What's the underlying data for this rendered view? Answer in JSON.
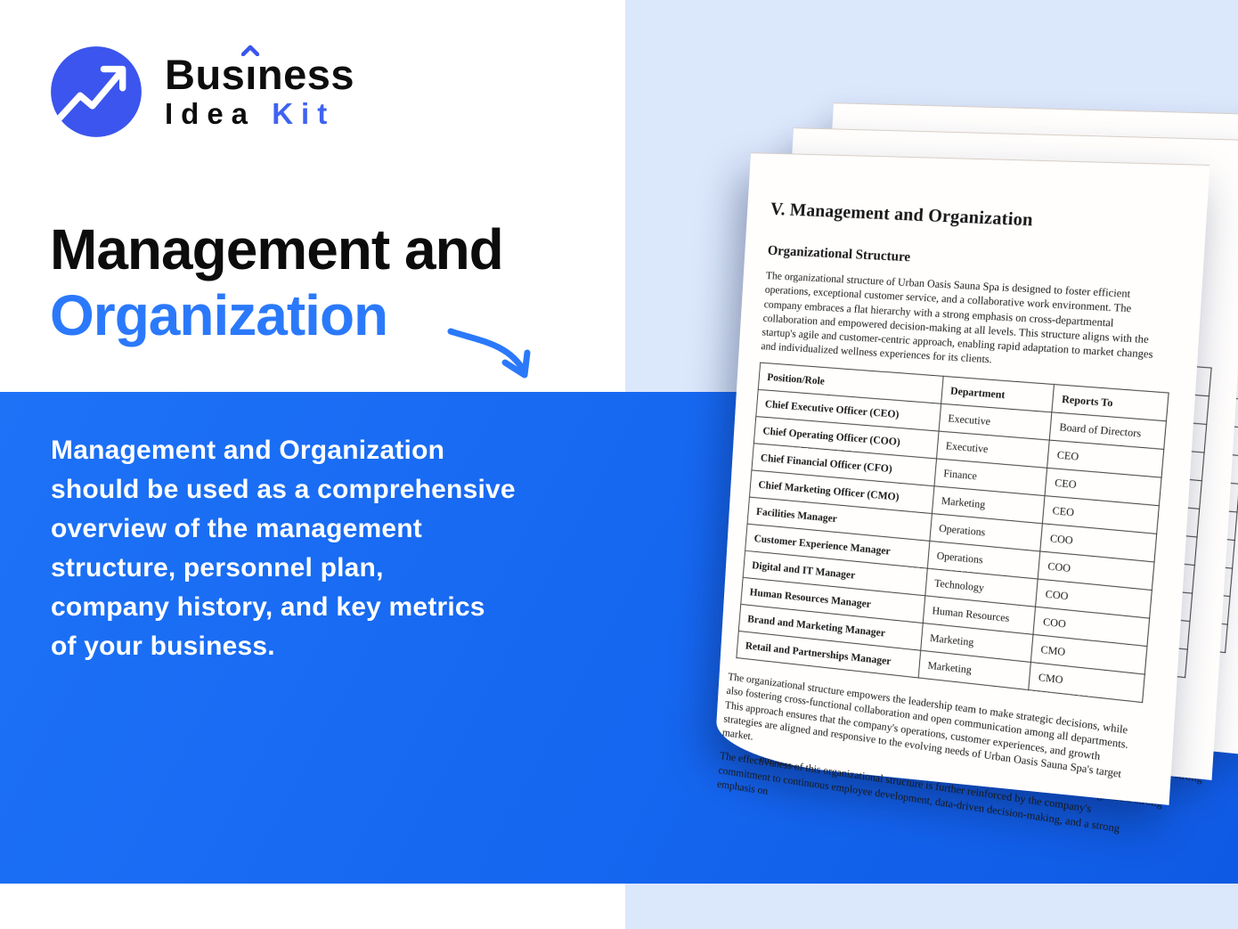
{
  "brand": {
    "name_pre": "Bus",
    "name_i": "ı",
    "name_post": "ness",
    "name_black": "Idea",
    "name_blue": "Kit"
  },
  "hero": {
    "title_black": "Management and",
    "title_blue": "Organization",
    "description_lines": [
      "Management and Organization",
      "should be used as a comprehensive",
      "overview of the management",
      "structure, personnel plan,",
      "company history, and key metrics",
      "of your business."
    ]
  },
  "colors": {
    "accent_blue": "#2b79fb",
    "band_blue": "#1566f0",
    "panel_light_blue": "#dbe7fb",
    "logo_circle_blue": "#3b55ee",
    "kit_blue": "#3e63f1"
  },
  "icons": {
    "logo_icon": "trend-up-arrow",
    "heading_arrow": "curved-down-right-arrow",
    "caret": "circumflex-caret"
  },
  "document": {
    "title": "V. Management and Organization",
    "section_heading": "Organizational Structure",
    "paragraph1": "The organizational structure of Urban Oasis Sauna Spa is designed to foster efficient operations, exceptional customer service, and a collaborative work environment. The company embraces a flat hierarchy with a strong emphasis on cross-departmental collaboration and empowered decision-making at all levels. This structure aligns with the startup's agile and customer-centric approach, enabling rapid adaptation to market changes and individualized wellness experiences for its clients.",
    "table": {
      "headers": [
        "Position/Role",
        "Department",
        "Reports To"
      ],
      "rows": [
        [
          "Chief Executive Officer (CEO)",
          "Executive",
          "Board of Directors"
        ],
        [
          "Chief Operating Officer (COO)",
          "Executive",
          "CEO"
        ],
        [
          "Chief Financial Officer (CFO)",
          "Finance",
          "CEO"
        ],
        [
          "Chief Marketing Officer (CMO)",
          "Marketing",
          "CEO"
        ],
        [
          "Facilities Manager",
          "Operations",
          "COO"
        ],
        [
          "Customer Experience Manager",
          "Operations",
          "COO"
        ],
        [
          "Digital and IT Manager",
          "Technology",
          "COO"
        ],
        [
          "Human Resources Manager",
          "Human Resources",
          "COO"
        ],
        [
          "Brand and Marketing Manager",
          "Marketing",
          "CMO"
        ],
        [
          "Retail and Partnerships Manager",
          "Marketing",
          "CMO"
        ]
      ]
    },
    "paragraph2": "The organizational structure empowers the leadership team to make strategic decisions, while also fostering cross-functional collaboration and open communication among all departments. This approach ensures that the company's operations, customer experiences, and growth strategies are aligned and responsive to the evolving needs of Urban Oasis Sauna Spa's target market.",
    "paragraph3": "The effectiveness of this organizational structure is further reinforced by the company's commitment to continuous employee development, data-driven decision-making, and a strong emphasis on"
  }
}
